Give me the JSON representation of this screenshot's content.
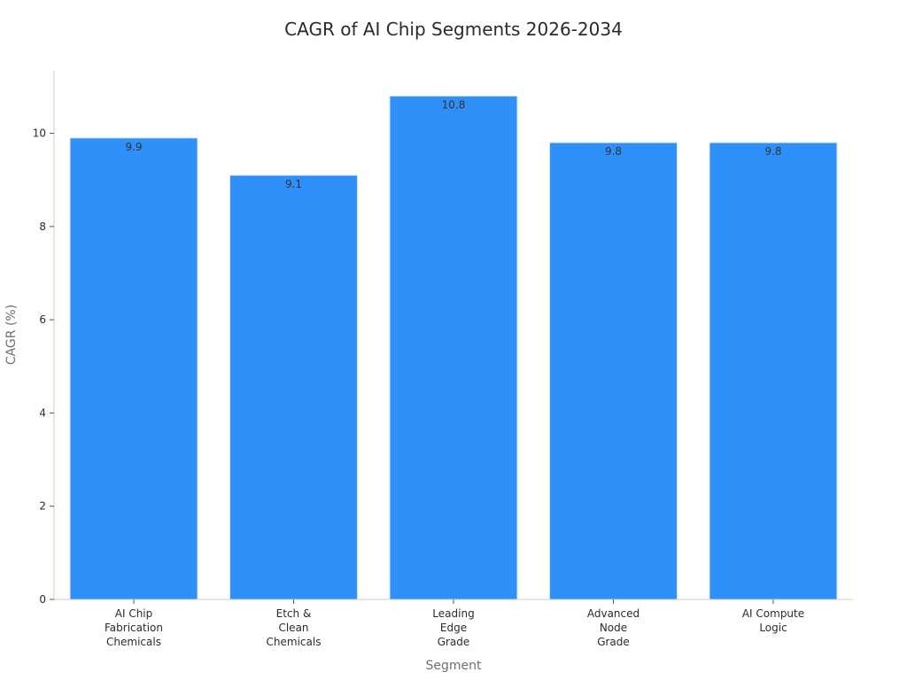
{
  "chart_data": {
    "type": "bar",
    "title": "CAGR of AI Chip Segments 2026-2034",
    "xlabel": "Segment",
    "ylabel": "CAGR (%)",
    "categories": [
      [
        "AI Chip",
        "Fabrication",
        "Chemicals"
      ],
      [
        "Etch &",
        "Clean",
        "Chemicals"
      ],
      [
        "Leading",
        "Edge",
        "Grade"
      ],
      [
        "Advanced",
        "Node",
        "Grade"
      ],
      [
        "AI Compute",
        "Logic"
      ]
    ],
    "values": [
      9.9,
      9.1,
      10.8,
      9.8,
      9.8
    ],
    "value_labels": [
      "9.9",
      "9.1",
      "10.8",
      "9.8",
      "9.8"
    ],
    "yticks": [
      0,
      2,
      4,
      6,
      8,
      10
    ],
    "ylim": [
      0,
      11.34
    ],
    "grid": false,
    "legend": "none",
    "bar_color": "#2e90f8"
  }
}
